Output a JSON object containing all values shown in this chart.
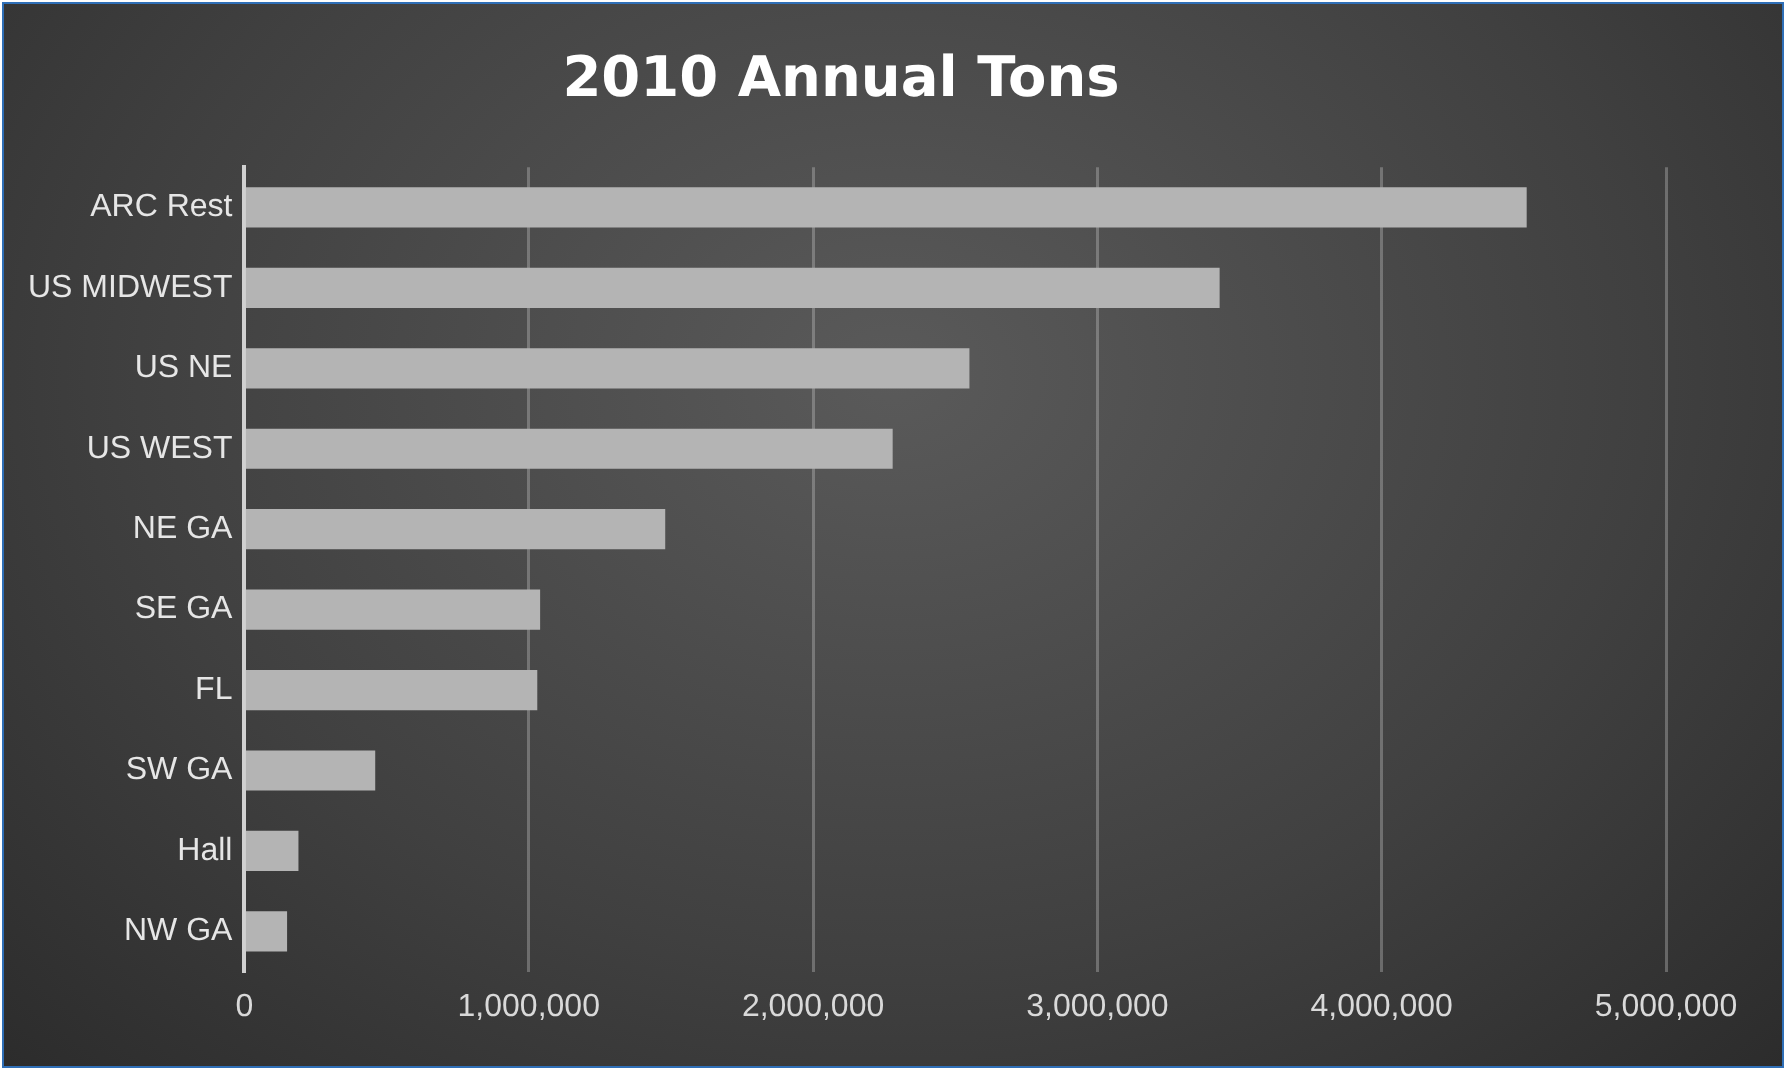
{
  "chart_data": {
    "type": "bar",
    "orientation": "horizontal",
    "title": "2010 Annual Tons",
    "categories": [
      "ARC Rest",
      "US MIDWEST",
      "US NE",
      "US WEST",
      "NE GA",
      "SE GA",
      "FL",
      "SW GA",
      "Hall",
      "NW GA"
    ],
    "values": [
      4510000,
      3430000,
      2550000,
      2280000,
      1480000,
      1040000,
      1030000,
      460000,
      190000,
      150000
    ],
    "color": "#b4b4b4",
    "xlim": [
      0,
      5000000
    ],
    "xticks": [
      {
        "value": 0,
        "label": "0"
      },
      {
        "value": 1000000,
        "label": "1,000,000"
      },
      {
        "value": 2000000,
        "label": "2,000,000"
      },
      {
        "value": 3000000,
        "label": "3,000,000"
      },
      {
        "value": 4000000,
        "label": "4,000,000"
      },
      {
        "value": 5000000,
        "label": "5,000,000"
      }
    ],
    "grid": "x",
    "legend": false
  }
}
